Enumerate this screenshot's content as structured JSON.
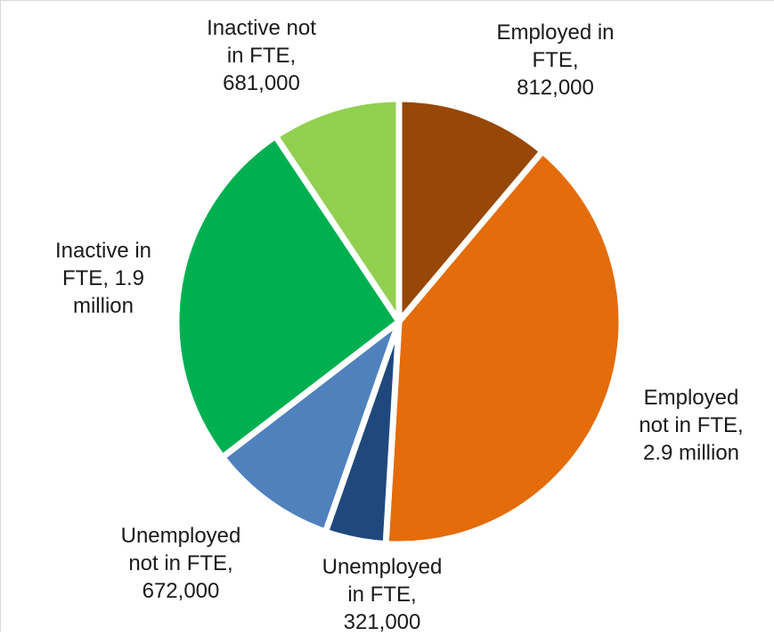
{
  "chart_data": {
    "type": "pie",
    "title": "",
    "slices": [
      {
        "label_lines": [
          "Employed in",
          "FTE,",
          "812,000"
        ],
        "value": 812000,
        "color": "#974706"
      },
      {
        "label_lines": [
          "Employed",
          "not in FTE,",
          "2.9 million"
        ],
        "value": 2900000,
        "color": "#e46c0a"
      },
      {
        "label_lines": [
          "Unemployed",
          "in FTE,",
          "321,000"
        ],
        "value": 321000,
        "color": "#1f497d"
      },
      {
        "label_lines": [
          "Unemployed",
          "not in FTE,",
          "672,000"
        ],
        "value": 672000,
        "color": "#4f81bd"
      },
      {
        "label_lines": [
          "Inactive in",
          "FTE, 1.9",
          "million"
        ],
        "value": 1900000,
        "color": "#00b050"
      },
      {
        "label_lines": [
          "Inactive not",
          "in FTE,",
          "681,000"
        ],
        "value": 681000,
        "color": "#92d050"
      }
    ],
    "start_angle": "12 o'clock",
    "direction": "clockwise",
    "slice_separator_color": "#ffffff"
  }
}
